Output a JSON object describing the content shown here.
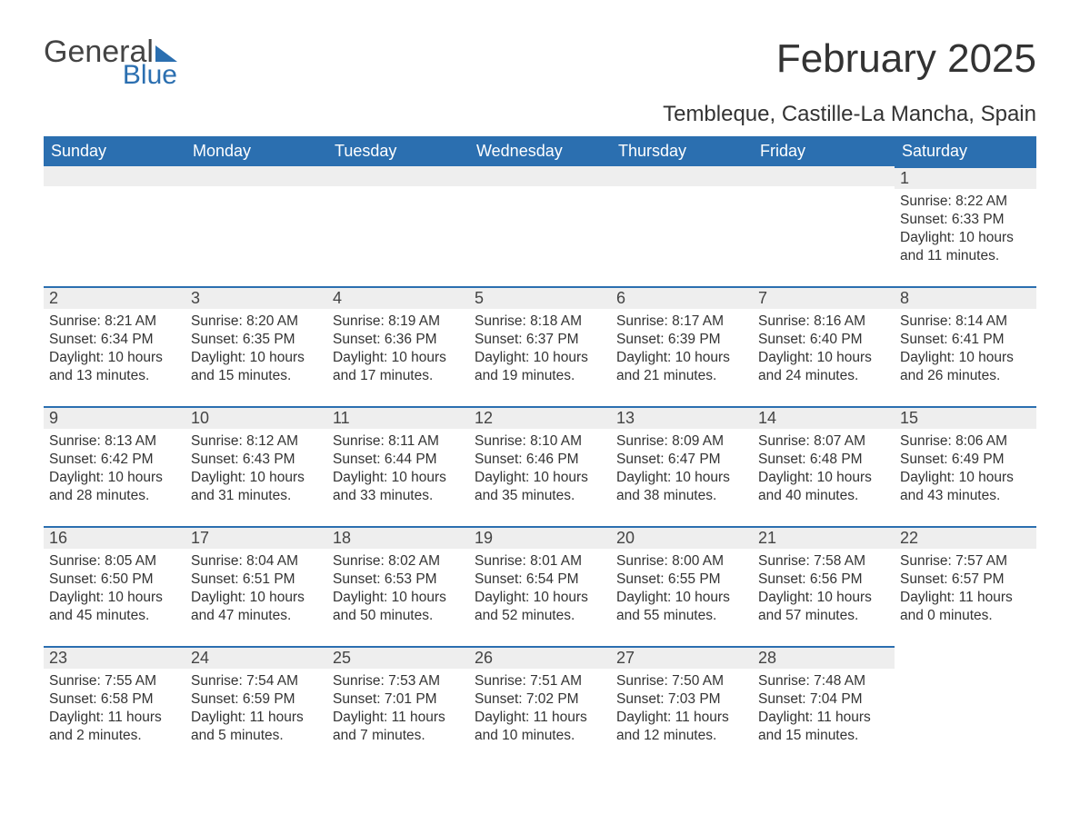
{
  "logo": {
    "word1": "General",
    "word2": "Blue"
  },
  "title": "February 2025",
  "location": "Tembleque, Castille-La Mancha, Spain",
  "colors": {
    "header_bg": "#2b6fb0",
    "header_fg": "#ffffff",
    "daynum_bg": "#eeeeee",
    "daynum_border": "#2b6fb0",
    "text": "#333333",
    "page_bg": "#ffffff"
  },
  "typography": {
    "title_fontsize": 44,
    "location_fontsize": 24,
    "weekday_fontsize": 18,
    "daynum_fontsize": 18,
    "body_fontsize": 15.5
  },
  "weekdays": [
    "Sunday",
    "Monday",
    "Tuesday",
    "Wednesday",
    "Thursday",
    "Friday",
    "Saturday"
  ],
  "labels": {
    "sunrise": "Sunrise:",
    "sunset": "Sunset:",
    "daylight": "Daylight:"
  },
  "weeks": [
    [
      null,
      null,
      null,
      null,
      null,
      null,
      {
        "n": "1",
        "sunrise": "8:22 AM",
        "sunset": "6:33 PM",
        "daylight": "10 hours and 11 minutes."
      }
    ],
    [
      {
        "n": "2",
        "sunrise": "8:21 AM",
        "sunset": "6:34 PM",
        "daylight": "10 hours and 13 minutes."
      },
      {
        "n": "3",
        "sunrise": "8:20 AM",
        "sunset": "6:35 PM",
        "daylight": "10 hours and 15 minutes."
      },
      {
        "n": "4",
        "sunrise": "8:19 AM",
        "sunset": "6:36 PM",
        "daylight": "10 hours and 17 minutes."
      },
      {
        "n": "5",
        "sunrise": "8:18 AM",
        "sunset": "6:37 PM",
        "daylight": "10 hours and 19 minutes."
      },
      {
        "n": "6",
        "sunrise": "8:17 AM",
        "sunset": "6:39 PM",
        "daylight": "10 hours and 21 minutes."
      },
      {
        "n": "7",
        "sunrise": "8:16 AM",
        "sunset": "6:40 PM",
        "daylight": "10 hours and 24 minutes."
      },
      {
        "n": "8",
        "sunrise": "8:14 AM",
        "sunset": "6:41 PM",
        "daylight": "10 hours and 26 minutes."
      }
    ],
    [
      {
        "n": "9",
        "sunrise": "8:13 AM",
        "sunset": "6:42 PM",
        "daylight": "10 hours and 28 minutes."
      },
      {
        "n": "10",
        "sunrise": "8:12 AM",
        "sunset": "6:43 PM",
        "daylight": "10 hours and 31 minutes."
      },
      {
        "n": "11",
        "sunrise": "8:11 AM",
        "sunset": "6:44 PM",
        "daylight": "10 hours and 33 minutes."
      },
      {
        "n": "12",
        "sunrise": "8:10 AM",
        "sunset": "6:46 PM",
        "daylight": "10 hours and 35 minutes."
      },
      {
        "n": "13",
        "sunrise": "8:09 AM",
        "sunset": "6:47 PM",
        "daylight": "10 hours and 38 minutes."
      },
      {
        "n": "14",
        "sunrise": "8:07 AM",
        "sunset": "6:48 PM",
        "daylight": "10 hours and 40 minutes."
      },
      {
        "n": "15",
        "sunrise": "8:06 AM",
        "sunset": "6:49 PM",
        "daylight": "10 hours and 43 minutes."
      }
    ],
    [
      {
        "n": "16",
        "sunrise": "8:05 AM",
        "sunset": "6:50 PM",
        "daylight": "10 hours and 45 minutes."
      },
      {
        "n": "17",
        "sunrise": "8:04 AM",
        "sunset": "6:51 PM",
        "daylight": "10 hours and 47 minutes."
      },
      {
        "n": "18",
        "sunrise": "8:02 AM",
        "sunset": "6:53 PM",
        "daylight": "10 hours and 50 minutes."
      },
      {
        "n": "19",
        "sunrise": "8:01 AM",
        "sunset": "6:54 PM",
        "daylight": "10 hours and 52 minutes."
      },
      {
        "n": "20",
        "sunrise": "8:00 AM",
        "sunset": "6:55 PM",
        "daylight": "10 hours and 55 minutes."
      },
      {
        "n": "21",
        "sunrise": "7:58 AM",
        "sunset": "6:56 PM",
        "daylight": "10 hours and 57 minutes."
      },
      {
        "n": "22",
        "sunrise": "7:57 AM",
        "sunset": "6:57 PM",
        "daylight": "11 hours and 0 minutes."
      }
    ],
    [
      {
        "n": "23",
        "sunrise": "7:55 AM",
        "sunset": "6:58 PM",
        "daylight": "11 hours and 2 minutes."
      },
      {
        "n": "24",
        "sunrise": "7:54 AM",
        "sunset": "6:59 PM",
        "daylight": "11 hours and 5 minutes."
      },
      {
        "n": "25",
        "sunrise": "7:53 AM",
        "sunset": "7:01 PM",
        "daylight": "11 hours and 7 minutes."
      },
      {
        "n": "26",
        "sunrise": "7:51 AM",
        "sunset": "7:02 PM",
        "daylight": "11 hours and 10 minutes."
      },
      {
        "n": "27",
        "sunrise": "7:50 AM",
        "sunset": "7:03 PM",
        "daylight": "11 hours and 12 minutes."
      },
      {
        "n": "28",
        "sunrise": "7:48 AM",
        "sunset": "7:04 PM",
        "daylight": "11 hours and 15 minutes."
      },
      null
    ]
  ]
}
